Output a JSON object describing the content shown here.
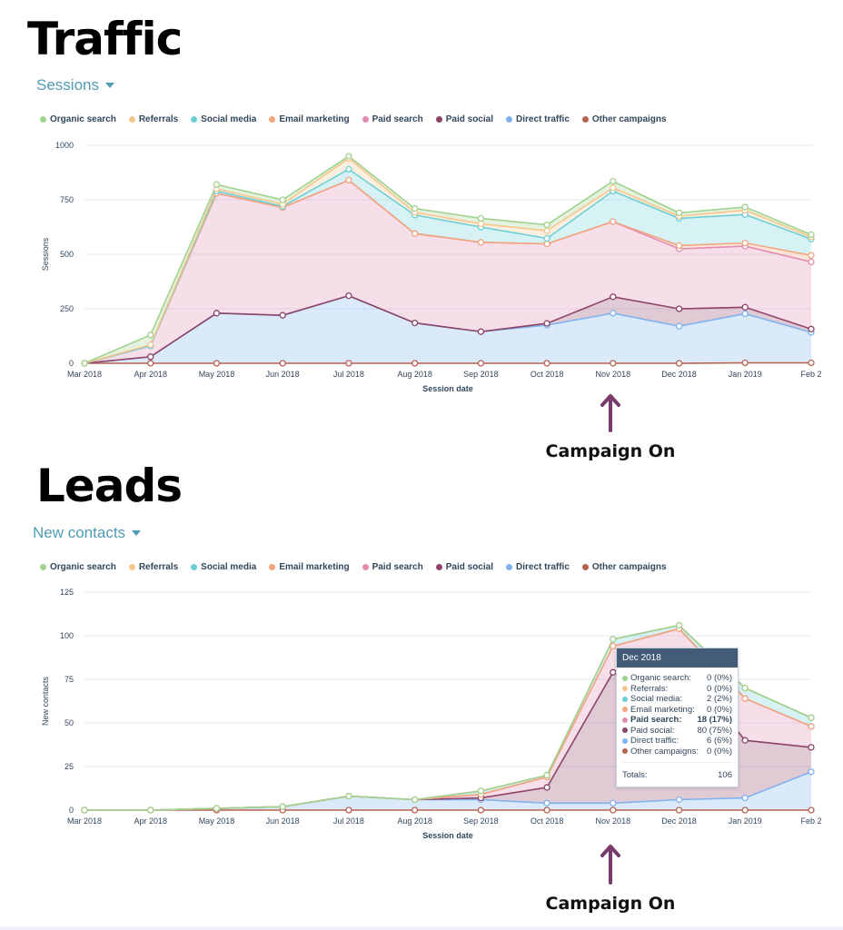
{
  "traffic": {
    "title": "Traffic",
    "metric_label": "Sessions",
    "annotation": "Campaign On"
  },
  "leads": {
    "title": "Leads",
    "metric_label": "New contacts",
    "annotation": "Campaign On",
    "tooltip": {
      "header": "Dec 2018",
      "rows": [
        {
          "name": "Organic search:",
          "value": "0 (0%)",
          "color": "#a2d28f"
        },
        {
          "name": "Referrals:",
          "value": "0 (0%)",
          "color": "#f5c78e"
        },
        {
          "name": "Social media:",
          "value": "2 (2%)",
          "color": "#6ccfd6"
        },
        {
          "name": "Email marketing:",
          "value": "0 (0%)",
          "color": "#f3a57e"
        },
        {
          "name": "Paid search:",
          "value": "18 (17%)",
          "color": "#e28cb0",
          "bold": true
        },
        {
          "name": "Paid social:",
          "value": "80 (75%)",
          "color": "#8e4368"
        },
        {
          "name": "Direct traffic:",
          "value": "6 (6%)",
          "color": "#7fb2ee"
        },
        {
          "name": "Other campaigns:",
          "value": "0 (0%)",
          "color": "#b86351"
        }
      ],
      "total_label": "Totals:",
      "total_value": "106"
    }
  },
  "legend": [
    {
      "name": "Organic search",
      "color": "#a2d28f"
    },
    {
      "name": "Referrals",
      "color": "#f5c78e"
    },
    {
      "name": "Social media",
      "color": "#6ccfd6"
    },
    {
      "name": "Email marketing",
      "color": "#f3a57e"
    },
    {
      "name": "Paid search",
      "color": "#e28cb0"
    },
    {
      "name": "Paid social",
      "color": "#8e4368"
    },
    {
      "name": "Direct traffic",
      "color": "#7fb2ee"
    },
    {
      "name": "Other campaigns",
      "color": "#b86351"
    }
  ],
  "chart_data": [
    {
      "type": "area",
      "stacked": true,
      "xlabel": "Session date",
      "ylabel": "Sessions",
      "ylim": [
        0,
        1000
      ],
      "yticks": [
        0,
        250,
        500,
        750,
        1000
      ],
      "categories": [
        "Mar 2018",
        "Apr 2018",
        "May 2018",
        "Jun 2018",
        "Jul 2018",
        "Aug 2018",
        "Sep 2018",
        "Oct 2018",
        "Nov 2018",
        "Dec 2018",
        "Jan 2019",
        "Feb 2"
      ],
      "grid": true,
      "legend_position": "top-left",
      "series": [
        {
          "name": "Other campaigns",
          "color": "#b86351",
          "values": [
            0,
            0,
            0,
            0,
            0,
            0,
            0,
            0,
            0,
            0,
            2,
            2
          ]
        },
        {
          "name": "Direct traffic",
          "color": "#7fb2ee",
          "values": [
            0,
            30,
            230,
            220,
            310,
            185,
            145,
            175,
            230,
            170,
            225,
            140
          ]
        },
        {
          "name": "Paid social",
          "color": "#8e4368",
          "values": [
            0,
            0,
            0,
            0,
            0,
            0,
            0,
            8,
            75,
            80,
            30,
            15
          ]
        },
        {
          "name": "Paid search",
          "color": "#e28cb0",
          "values": [
            0,
            50,
            550,
            495,
            530,
            410,
            410,
            365,
            345,
            275,
            280,
            308
          ]
        },
        {
          "name": "Email marketing",
          "color": "#f3a57e",
          "values": [
            0,
            0,
            0,
            0,
            0,
            0,
            0,
            0,
            0,
            15,
            15,
            30
          ]
        },
        {
          "name": "Social media",
          "color": "#6ccfd6",
          "values": [
            0,
            0,
            10,
            5,
            50,
            85,
            70,
            25,
            140,
            125,
            130,
            75
          ]
        },
        {
          "name": "Referrals",
          "color": "#f5c78e",
          "values": [
            0,
            5,
            10,
            10,
            50,
            12,
            15,
            35,
            15,
            10,
            20,
            10
          ]
        },
        {
          "name": "Organic search",
          "color": "#a2d28f",
          "values": [
            0,
            45,
            20,
            20,
            10,
            18,
            25,
            27,
            30,
            15,
            15,
            10
          ]
        }
      ]
    },
    {
      "type": "area",
      "stacked": true,
      "xlabel": "Session date",
      "ylabel": "New contacts",
      "ylim": [
        0,
        125
      ],
      "yticks": [
        0,
        25,
        50,
        75,
        100,
        125
      ],
      "categories": [
        "Mar 2018",
        "Apr 2018",
        "May 2018",
        "Jun 2018",
        "Jul 2018",
        "Aug 2018",
        "Sep 2018",
        "Oct 2018",
        "Nov 2018",
        "Dec 2018",
        "Jan 2019",
        "Feb 2"
      ],
      "grid": true,
      "legend_position": "top-left",
      "series": [
        {
          "name": "Other campaigns",
          "color": "#b86351",
          "values": [
            0,
            0,
            0,
            0,
            0,
            0,
            0,
            0,
            0,
            0,
            0,
            0
          ]
        },
        {
          "name": "Direct traffic",
          "color": "#7fb2ee",
          "values": [
            0,
            0,
            1,
            2,
            8,
            6,
            6,
            4,
            4,
            6,
            7,
            22
          ]
        },
        {
          "name": "Paid social",
          "color": "#8e4368",
          "values": [
            0,
            0,
            0,
            0,
            0,
            0,
            1,
            9,
            75,
            80,
            33,
            14
          ]
        },
        {
          "name": "Paid search",
          "color": "#e28cb0",
          "values": [
            0,
            0,
            0,
            0,
            0,
            0,
            2,
            6,
            15,
            18,
            24,
            12
          ]
        },
        {
          "name": "Email marketing",
          "color": "#f3a57e",
          "values": [
            0,
            0,
            0,
            0,
            0,
            0,
            0,
            0,
            0,
            0,
            0,
            0
          ]
        },
        {
          "name": "Social media",
          "color": "#6ccfd6",
          "values": [
            0,
            0,
            0,
            0,
            0,
            0,
            2,
            1,
            4,
            2,
            6,
            5
          ]
        },
        {
          "name": "Referrals",
          "color": "#f5c78e",
          "values": [
            0,
            0,
            0,
            0,
            0,
            0,
            0,
            0,
            0,
            0,
            0,
            0
          ]
        },
        {
          "name": "Organic search",
          "color": "#a2d28f",
          "values": [
            0,
            0,
            0,
            0,
            0,
            0,
            0,
            0,
            0,
            0,
            0,
            0
          ]
        }
      ]
    }
  ]
}
